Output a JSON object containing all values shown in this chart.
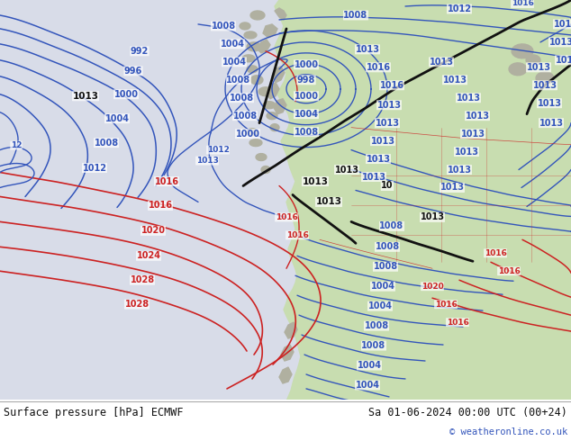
{
  "title_left": "Surface pressure [hPa] ECMWF",
  "title_right": "Sa 01-06-2024 00:00 UTC (00+24)",
  "copyright": "© weatheronline.co.uk",
  "bg_ocean": "#d8dce8",
  "land_color": "#c8ddb0",
  "land_color2": "#b8c8a0",
  "gray_land": "#b0b0a0",
  "bottom_bar_color": "#ffffff",
  "blue": "#3355bb",
  "red": "#cc2222",
  "black": "#111111",
  "figsize": [
    6.34,
    4.9
  ],
  "dpi": 100
}
